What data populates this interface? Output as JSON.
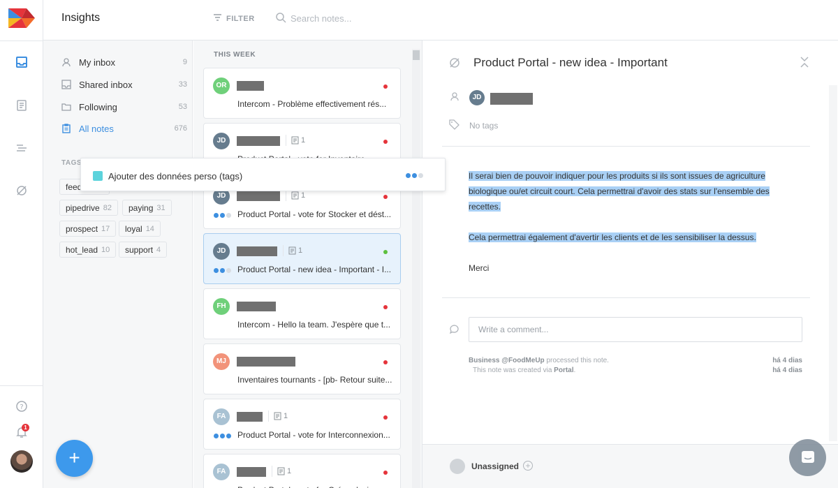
{
  "app": {
    "title": "Insights"
  },
  "topbar": {
    "filter_label": "FILTER",
    "search_placeholder": "Search notes..."
  },
  "sidebar": {
    "items": [
      {
        "label": "My inbox",
        "count": "9"
      },
      {
        "label": "Shared inbox",
        "count": "33"
      },
      {
        "label": "Following",
        "count": "53"
      },
      {
        "label": "All notes",
        "count": "676"
      }
    ],
    "tags_title": "TAGS",
    "tags": [
      {
        "label": "feedback",
        "count": ""
      },
      {
        "label": "pipedrive",
        "count": "82"
      },
      {
        "label": "paying",
        "count": "31"
      },
      {
        "label": "prospect",
        "count": "17"
      },
      {
        "label": "loyal",
        "count": "14"
      },
      {
        "label": "hot_lead",
        "count": "10"
      },
      {
        "label": "support",
        "count": "4"
      }
    ]
  },
  "notes": {
    "section": "THIS WEEK",
    "cards": [
      {
        "initials": "OR",
        "avatar_color": "#6fd07a",
        "snippet": "Intercom - Problème effectivement rés...",
        "status": "#e5343b",
        "attachments": "",
        "progress": 0
      },
      {
        "initials": "JD",
        "avatar_color": "#667c8e",
        "snippet": "Product Portal - vote for Inventaire...",
        "status": "#e5343b",
        "attachments": "1",
        "progress": 0
      },
      {
        "initials": "JD",
        "avatar_color": "#667c8e",
        "snippet": "Product Portal - vote for Stocker et dést...",
        "status": "#e5343b",
        "attachments": "1",
        "progress": 2
      },
      {
        "initials": "JD",
        "avatar_color": "#667c8e",
        "snippet": "Product Portal - new idea - Important - I...",
        "status": "#5cc03e",
        "attachments": "1",
        "progress": 2
      },
      {
        "initials": "FH",
        "avatar_color": "#6fd07a",
        "snippet": "Intercom - Hello la team. J'espère que t...",
        "status": "#e5343b",
        "attachments": "",
        "progress": 0
      },
      {
        "initials": "MJ",
        "avatar_color": "#f2937a",
        "snippet": "Inventaires tournants - [pb- Retour suite...",
        "status": "#e5343b",
        "attachments": "",
        "progress": 0
      },
      {
        "initials": "FA",
        "avatar_color": "#a9c2d3",
        "snippet": "Product Portal - vote for Interconnexion...",
        "status": "#e5343b",
        "attachments": "1",
        "progress": 3
      },
      {
        "initials": "FA",
        "avatar_color": "#a9c2d3",
        "snippet": "Product Portal - vote for Créer plusieurs...",
        "status": "#e5343b",
        "attachments": "1",
        "progress": 2
      }
    ]
  },
  "popup": {
    "label": "Ajouter des données perso (tags)"
  },
  "detail": {
    "title": "Product Portal - new idea - Important",
    "user_initials": "JD",
    "tags_empty": "No tags",
    "body": [
      "Il serai bien de pouvoir indiquer pour les produits si ils sont issues de agriculture biologique ou/et circuit court. Cela permettrai d'avoir des stats sur l'ensemble des recettes.",
      "Cela permettrai également d'avertir les clients et de les sensibiliser la dessus.",
      "Merci"
    ],
    "comment_placeholder": "Write a comment...",
    "log": [
      {
        "who": "Business @FoodMeUp",
        "text": " processed this note.",
        "when": "há 4 dias"
      },
      {
        "who": "",
        "text": "This note was created via ",
        "via": "Portal",
        "when": "há 4 dias"
      }
    ],
    "assignee": "Unassigned"
  },
  "colors": {
    "accent": "#3d8fe0",
    "fab": "#3d99ec",
    "highlight": "#a9d0f5"
  }
}
